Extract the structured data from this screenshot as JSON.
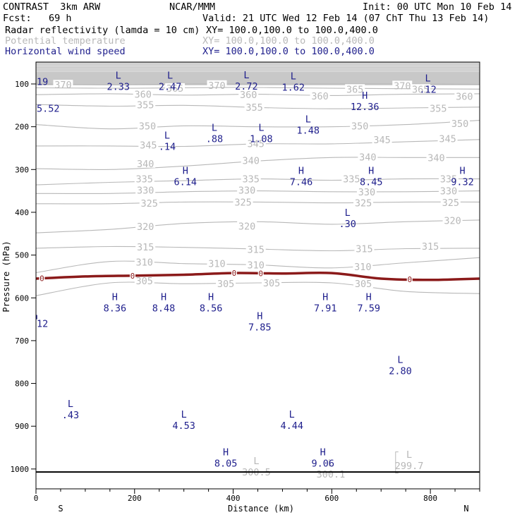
{
  "header": {
    "model": "CONTRAST  3km ARW",
    "center": "NCAR/MMM",
    "init": "Init: 00 UTC Mon 10 Feb 14",
    "fcst": "Fcst:   69 h",
    "valid": "Valid: 21 UTC Wed 12 Feb 14 (07 ChT Thu 13 Feb 14)",
    "fields": [
      {
        "name": "Radar reflectivity (lamda = 10 cm)",
        "xy": "XY= 100.0,100.0 to 100.0,400.0",
        "color": "#000000"
      },
      {
        "name": "Potential temperature",
        "xy": "XY= 100.0,100.0 to 100.0,400.0",
        "color": "#b8b8b8"
      },
      {
        "name": "Horizontal wind speed",
        "xy": "XY= 100.0,100.0 to 100.0,400.0",
        "color": "#1e1e8c"
      }
    ]
  },
  "chart_data": {
    "type": "cross-section contour",
    "xlabel": "Distance (km)",
    "ylabel": "Pressure (hPa)",
    "xlim": [
      0,
      900
    ],
    "ylim": [
      1050,
      75
    ],
    "x_ticks": [
      0,
      200,
      400,
      600,
      800
    ],
    "y_ticks": [
      100,
      200,
      300,
      400,
      500,
      600,
      700,
      800,
      900,
      1000
    ],
    "x_end_labels": {
      "left": "S",
      "right": "N"
    },
    "colors": {
      "theta": "#b8b8b8",
      "wind": "#1e1e8c",
      "reflectivity": "#8b1a1a",
      "axis": "#000000"
    },
    "theta_contours": [
      {
        "level": "370",
        "x": [
          0,
          150,
          300,
          450,
          600,
          750,
          900
        ],
        "p": [
          100,
          102,
          100,
          100,
          100,
          100,
          101
        ],
        "labels": [
          {
            "text": "370",
            "x": 55,
            "p": 102
          },
          {
            "text": "370",
            "x": 367,
            "p": 103
          },
          {
            "text": "370",
            "x": 743,
            "p": 104
          }
        ]
      },
      {
        "level": "365",
        "x": [
          0,
          200,
          400,
          600,
          900
        ],
        "p": [
          109,
          110,
          108,
          110,
          112
        ],
        "labels": [
          {
            "text": "365",
            "x": 282,
            "p": 110
          },
          {
            "text": "365",
            "x": 647,
            "p": 112
          },
          {
            "text": "365",
            "x": 780,
            "p": 112
          }
        ]
      },
      {
        "level": "360",
        "x": [
          0,
          150,
          300,
          450,
          600,
          750,
          900
        ],
        "p": [
          125,
          123,
          126,
          124,
          127,
          124,
          123
        ],
        "labels": [
          {
            "text": "360",
            "x": 217,
            "p": 124
          },
          {
            "text": "360",
            "x": 431,
            "p": 125
          },
          {
            "text": "360",
            "x": 576,
            "p": 128
          },
          {
            "text": "360",
            "x": 869,
            "p": 129
          }
        ]
      },
      {
        "level": "355",
        "x": [
          0,
          150,
          300,
          450,
          600,
          750,
          900
        ],
        "p": [
          148,
          152,
          150,
          155,
          158,
          156,
          154
        ],
        "labels": [
          {
            "text": "355",
            "x": 222,
            "p": 149
          },
          {
            "text": "355",
            "x": 443,
            "p": 154
          },
          {
            "text": "355",
            "x": 816,
            "p": 157
          }
        ]
      },
      {
        "level": "350",
        "x": [
          0,
          150,
          300,
          450,
          600,
          750,
          900
        ],
        "p": [
          195,
          205,
          198,
          200,
          200,
          195,
          185
        ],
        "labels": [
          {
            "text": "350",
            "x": 226,
            "p": 198
          },
          {
            "text": "350",
            "x": 657,
            "p": 198
          },
          {
            "text": "350",
            "x": 860,
            "p": 192
          }
        ]
      },
      {
        "level": "345",
        "x": [
          0,
          150,
          300,
          450,
          600,
          750,
          900
        ],
        "p": [
          245,
          245,
          246,
          240,
          240,
          235,
          230
        ],
        "labels": [
          {
            "text": "345",
            "x": 228,
            "p": 243
          },
          {
            "text": "345",
            "x": 446,
            "p": 239
          },
          {
            "text": "345",
            "x": 702,
            "p": 230
          },
          {
            "text": "345",
            "x": 835,
            "p": 228
          }
        ]
      },
      {
        "level": "340",
        "x": [
          0,
          150,
          300,
          450,
          600,
          750,
          900
        ],
        "p": [
          298,
          300,
          292,
          280,
          272,
          272,
          272
        ],
        "labels": [
          {
            "text": "340",
            "x": 222,
            "p": 286
          },
          {
            "text": "340",
            "x": 436,
            "p": 279
          },
          {
            "text": "340",
            "x": 673,
            "p": 271
          },
          {
            "text": "340",
            "x": 812,
            "p": 272
          }
        ]
      },
      {
        "level": "335",
        "x": [
          0,
          150,
          300,
          450,
          600,
          750,
          900
        ],
        "p": [
          336,
          330,
          326,
          322,
          325,
          322,
          322
        ],
        "labels": [
          {
            "text": "335",
            "x": 220,
            "p": 322
          },
          {
            "text": "335",
            "x": 436,
            "p": 322
          },
          {
            "text": "335",
            "x": 640,
            "p": 322
          },
          {
            "text": "335",
            "x": 837,
            "p": 322
          }
        ]
      },
      {
        "level": "330",
        "x": [
          0,
          150,
          300,
          450,
          600,
          750,
          900
        ],
        "p": [
          356,
          356,
          352,
          350,
          352,
          352,
          350
        ],
        "labels": [
          {
            "text": "330",
            "x": 222,
            "p": 348
          },
          {
            "text": "330",
            "x": 428,
            "p": 348
          },
          {
            "text": "330",
            "x": 671,
            "p": 352
          },
          {
            "text": "330",
            "x": 837,
            "p": 350
          }
        ]
      },
      {
        "level": "325",
        "x": [
          0,
          150,
          300,
          450,
          600,
          750,
          900
        ],
        "p": [
          380,
          380,
          376,
          376,
          378,
          376,
          376
        ],
        "labels": [
          {
            "text": "325",
            "x": 230,
            "p": 379
          },
          {
            "text": "325",
            "x": 420,
            "p": 376
          },
          {
            "text": "325",
            "x": 664,
            "p": 378
          },
          {
            "text": "325",
            "x": 841,
            "p": 377
          }
        ]
      },
      {
        "level": "320",
        "x": [
          0,
          150,
          300,
          450,
          600,
          750,
          900
        ],
        "p": [
          448,
          440,
          426,
          422,
          428,
          422,
          418
        ],
        "labels": [
          {
            "text": "320",
            "x": 222,
            "p": 433
          },
          {
            "text": "320",
            "x": 428,
            "p": 432
          },
          {
            "text": "320",
            "x": 845,
            "p": 419
          }
        ]
      },
      {
        "level": "315",
        "x": [
          0,
          150,
          300,
          450,
          600,
          750,
          900
        ],
        "p": [
          484,
          480,
          482,
          486,
          490,
          485,
          484
        ],
        "labels": [
          {
            "text": "315",
            "x": 222,
            "p": 481
          },
          {
            "text": "315",
            "x": 446,
            "p": 487
          },
          {
            "text": "315",
            "x": 666,
            "p": 485
          },
          {
            "text": "315",
            "x": 800,
            "p": 479
          }
        ]
      },
      {
        "level": "310",
        "x": [
          0,
          150,
          300,
          450,
          600,
          750,
          900
        ],
        "p": [
          541,
          515,
          520,
          523,
          530,
          518,
          506
        ],
        "labels": [
          {
            "text": "310",
            "x": 220,
            "p": 516
          },
          {
            "text": "310",
            "x": 367,
            "p": 520
          },
          {
            "text": "310",
            "x": 446,
            "p": 523
          },
          {
            "text": "310",
            "x": 663,
            "p": 527
          }
        ]
      },
      {
        "level": "305",
        "x": [
          0,
          150,
          300,
          450,
          600,
          750,
          900
        ],
        "p": [
          595,
          565,
          567,
          565,
          565,
          585,
          590
        ],
        "labels": [
          {
            "text": "305",
            "x": 220,
            "p": 560
          },
          {
            "text": "305",
            "x": 385,
            "p": 567
          },
          {
            "text": "305",
            "x": 478,
            "p": 565
          },
          {
            "text": "305",
            "x": 664,
            "p": 567
          }
        ]
      }
    ],
    "reflectivity_contour": {
      "level": "0",
      "x": [
        0,
        100,
        200,
        300,
        400,
        500,
        600,
        700,
        800,
        900
      ],
      "p": [
        555,
        550,
        548,
        546,
        542,
        543,
        542,
        555,
        558,
        555
      ],
      "labels": [
        {
          "text": "0",
          "x": 12
        },
        {
          "text": "0",
          "x": 196
        },
        {
          "text": "0",
          "x": 402
        },
        {
          "text": "0",
          "x": 456
        },
        {
          "text": "0",
          "x": 758
        }
      ]
    },
    "theta_extrema": [
      {
        "kind": "L",
        "value": "300.5",
        "x": 447,
        "p": 1005
      },
      {
        "kind": "L",
        "value": "300.1",
        "x": 598,
        "p": 1010
      },
      {
        "kind": "L",
        "value": "299.7",
        "x": 757,
        "p": 990
      }
    ],
    "wind_extrema": [
      {
        "kind": "L",
        "value": "2.33",
        "x": 167,
        "p": 88
      },
      {
        "kind": "L",
        "value": "2.47",
        "x": 272,
        "p": 88
      },
      {
        "kind": "L",
        "value": "2.72",
        "x": 427,
        "p": 87
      },
      {
        "kind": "L",
        "value": "1.62",
        "x": 522,
        "p": 89
      },
      {
        "kind": "L",
        "value": ".12",
        "x": 795,
        "p": 94
      },
      {
        "kind": "H",
        "value": "12.36",
        "x": 667,
        "p": 135
      },
      {
        "kind": "L",
        "value": "1.48",
        "x": 552,
        "p": 190
      },
      {
        "kind": "L",
        "value": ".14",
        "x": 266,
        "p": 228
      },
      {
        "kind": "L",
        "value": ".88",
        "x": 362,
        "p": 210
      },
      {
        "kind": "L",
        "value": "1.08",
        "x": 457,
        "p": 210
      },
      {
        "kind": "H",
        "value": "6.14",
        "x": 303,
        "p": 310
      },
      {
        "kind": "H",
        "value": "7.46",
        "x": 538,
        "p": 310
      },
      {
        "kind": "H",
        "value": "8.45",
        "x": 680,
        "p": 310
      },
      {
        "kind": "H",
        "value": "9.32",
        "x": 865,
        "p": 310
      },
      {
        "kind": "L",
        "value": ".30",
        "x": 632,
        "p": 408
      },
      {
        "kind": "H",
        "value": "8.36",
        "x": 160,
        "p": 605
      },
      {
        "kind": "H",
        "value": "8.48",
        "x": 259,
        "p": 605
      },
      {
        "kind": "H",
        "value": "8.56",
        "x": 355,
        "p": 605
      },
      {
        "kind": "H",
        "value": "7.91",
        "x": 587,
        "p": 605
      },
      {
        "kind": "H",
        "value": "7.59",
        "x": 675,
        "p": 605
      },
      {
        "kind": "H",
        "value": "7.85",
        "x": 454,
        "p": 650
      },
      {
        "kind": "L",
        "value": "2.80",
        "x": 739,
        "p": 752
      },
      {
        "kind": "L",
        "value": ".43",
        "x": 70,
        "p": 855
      },
      {
        "kind": "L",
        "value": "4.53",
        "x": 300,
        "p": 880
      },
      {
        "kind": "L",
        "value": "4.44",
        "x": 519,
        "p": 880
      },
      {
        "kind": "H",
        "value": "8.05",
        "x": 385,
        "p": 968
      },
      {
        "kind": "H",
        "value": "9.06",
        "x": 582,
        "p": 968
      }
    ],
    "edge_labels": [
      {
        "value": "19",
        "side": "left",
        "p": 94,
        "color": "wind"
      },
      {
        "value": "5.52",
        "side": "left",
        "p": 157,
        "color": "wind"
      },
      {
        "value": "12",
        "side": "left",
        "p": 660,
        "color": "wind"
      }
    ]
  }
}
